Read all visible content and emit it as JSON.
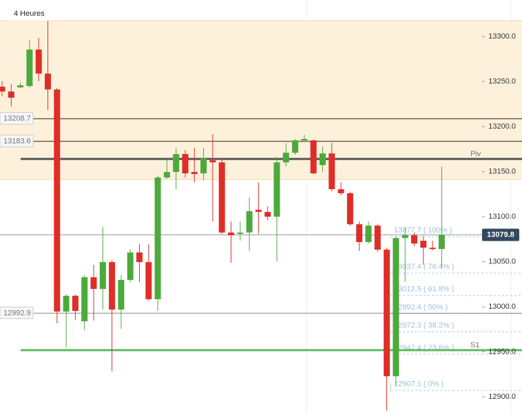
{
  "chart_data": {
    "type": "candlestick",
    "title": "4 Heures",
    "ylim": [
      12881,
      13340.5
    ],
    "yticks": [
      {
        "value": 12900,
        "label": "12900.0"
      },
      {
        "value": 12950,
        "label": "12950.0"
      },
      {
        "value": 13000,
        "label": "13000.0"
      },
      {
        "value": 13050,
        "label": "13050.0"
      },
      {
        "value": 13100,
        "label": "13100.0"
      },
      {
        "value": 13150,
        "label": "13150.0"
      },
      {
        "value": 13200,
        "label": "13200.0"
      },
      {
        "value": 13250,
        "label": "13250.0"
      },
      {
        "value": 13300,
        "label": "13300.0"
      }
    ],
    "up_color": "#4caa3c",
    "down_color": "#df2e28",
    "zone": {
      "range": [
        13141.2,
        13317.6
      ],
      "color": "#fdf1dc"
    },
    "open": [
      13244.3,
      13238.9,
      13243.5,
      13245.0,
      13285.5,
      13258.8,
      13241.2,
      12994.7,
      13012.2,
      12983.9,
      13032.8,
      13019.8,
      13049.6,
      12996.9,
      13029.8,
      13060.3,
      13049.6,
      13008.4,
      13143.5,
      13149.6,
      13169.5,
      13149.6,
      13148.1,
      13162.6,
      13160.3,
      13082.4,
      13080.9,
      13082.4,
      13107.6,
      13105.3,
      13100.0,
      13160.3,
      13171.0,
      13184.7,
      13184.7,
      13157.3,
      13170.2,
      13130.5,
      13126.0,
      13091.6,
      13071.8,
      13090.1,
      13063.4,
      12922.9,
      13076.3,
      13079.4,
      13073.3,
      13065.6,
      13064.1
    ],
    "high": [
      13250.4,
      13247.3,
      13248.9,
      13296.2,
      13298.5,
      13317.6,
      13242.7,
      13013.7,
      13013.7,
      13035.1,
      13046.6,
      13088.5,
      13051.9,
      13035.1,
      13064.1,
      13069.5,
      13069.5,
      13145.8,
      13163.4,
      13176.3,
      13174.0,
      13176.3,
      13176.3,
      13191.6,
      13164.9,
      13094.7,
      13094.7,
      13121.4,
      13138.2,
      13111.5,
      13166.4,
      13181.7,
      13186.3,
      13190.8,
      13185.5,
      13177.9,
      13181.7,
      13138.2,
      13127.5,
      13094.7,
      13094.7,
      13091.6,
      13065.6,
      13078.6,
      13088.5,
      13082.4,
      13078.6,
      13073.3,
      13155.7
    ],
    "low": [
      13233.6,
      13222.1,
      13242.7,
      13243.5,
      13250.4,
      13218.3,
      12981.7,
      12954.9,
      12985.5,
      12974.0,
      12984.6,
      12996.9,
      12928.2,
      12975.6,
      13027.5,
      13027.5,
      13006.9,
      12995.4,
      13142.0,
      13130.5,
      13143.5,
      13138.2,
      13140.5,
      13094.7,
      13080.9,
      13048.9,
      13073.3,
      13061.8,
      13080.9,
      13096.2,
      13050.4,
      13155.7,
      13168.7,
      13184.0,
      13147.3,
      13149.6,
      13128.2,
      13123.7,
      13090.1,
      13061.8,
      13070.2,
      13061.1,
      12884.7,
      12913.0,
      13027.5,
      13067.2,
      13046.6,
      13062.6,
      13042.7
    ],
    "close": [
      13238.9,
      13232.1,
      13245.8,
      13285.5,
      13258.8,
      13241.2,
      12994.7,
      13012.2,
      12995.4,
      13032.8,
      13019.8,
      13049.6,
      12996.9,
      13029.8,
      13060.3,
      13049.6,
      13008.4,
      13143.5,
      13149.6,
      13169.5,
      13148.1,
      13147.3,
      13164.9,
      13160.3,
      13082.4,
      13079.4,
      13082.4,
      13106.1,
      13105.3,
      13100.0,
      13160.3,
      13171.0,
      13184.7,
      13186.3,
      13148.1,
      13170.2,
      13130.5,
      13126.0,
      13091.6,
      13071.8,
      13090.1,
      13063.4,
      12922.9,
      13076.3,
      13079.4,
      13070.2,
      13065.6,
      13064.1,
      13079.8
    ],
    "levels": [
      {
        "value": 13208.7,
        "color": "#6e5c48",
        "tag": "13208.7"
      },
      {
        "value": 13183.6,
        "color": "#6e5c48",
        "tag": "13183.6"
      },
      {
        "value": 13164.1,
        "color": "#555555",
        "name": "Piv"
      },
      {
        "value": 12992.9,
        "color": "#888888",
        "tag": "12992.9"
      },
      {
        "value": 12951.9,
        "color": "#5cb85c",
        "name": "S1"
      }
    ],
    "last_price": 13079.8,
    "fib_levels": [
      {
        "value": 13077.7,
        "label": "13077.7 ( 100% )"
      },
      {
        "value": 13037.4,
        "label": "13037.4 ( 76.4% )"
      },
      {
        "value": 13012.5,
        "label": "13012.5 ( 61.8% )"
      },
      {
        "value": 12992.4,
        "label": "12992.4 ( 50% )"
      },
      {
        "value": 12972.3,
        "label": "12972.3 ( 38.2% )"
      },
      {
        "value": 12947.4,
        "label": "12947.4 ( 23.6% )"
      },
      {
        "value": 12907.1,
        "label": "12907.1 ( 0% )"
      }
    ]
  }
}
